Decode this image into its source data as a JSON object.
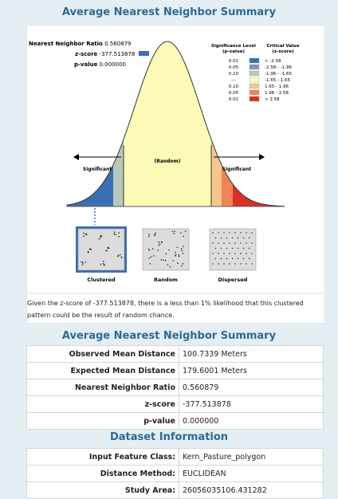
{
  "title_top": "Average Nearest Neighbor Summary",
  "graphic": {
    "nn_ratio_label": "Nearest Neighbor Ratio",
    "nn_ratio_value": "0.560879",
    "zscore_label": "z-score",
    "zscore_value": "-377.513878",
    "pvalue_label": "p-value",
    "pvalue_value": "0.000000",
    "legend_sig_header1": "Significance Level",
    "legend_sig_header2": "(p-value)",
    "legend_crit_header1": "Critical Value",
    "legend_crit_header2": "(z-score)",
    "legend_rows": [
      {
        "p": "0.01",
        "z": "< -2.58",
        "color": "#3a6fb4"
      },
      {
        "p": "0.05",
        "z": "-2.58 - -1.96",
        "color": "#7c99bd"
      },
      {
        "p": "0.10",
        "z": "-1.96 - -1.65",
        "color": "#b8c9bc"
      },
      {
        "p": "---",
        "z": "-1.65 - 1.65",
        "color": "#fbfbb7"
      },
      {
        "p": "0.10",
        "z": "1.65 - 1.96",
        "color": "#f7c68e"
      },
      {
        "p": "0.05",
        "z": "1.96 - 2.58",
        "color": "#ef8458"
      },
      {
        "p": "0.01",
        "z": "> 2.58",
        "color": "#d73026"
      }
    ],
    "random_label": "(Random)",
    "significant_left": "Significant",
    "significant_right": "Significant",
    "clustered_label": "Clustered",
    "random_pattern_label": "Random",
    "dispersed_label": "Dispersed",
    "note": "Given the z-score of -377.513878, there is a less than 1% likelihood that this clustered pattern could be the result of random chance."
  },
  "title_summary": "Average Nearest Neighbor Summary",
  "summary_rows": [
    {
      "key": "Observed Mean Distance",
      "value": "100.7339 Meters"
    },
    {
      "key": "Expected Mean Distance",
      "value": "179.6001 Meters"
    },
    {
      "key": "Nearest Neighbor Ratio",
      "value": "0.560879"
    },
    {
      "key": "z-score",
      "value": "-377.513878"
    },
    {
      "key": "p-value",
      "value": "0.000000"
    }
  ],
  "title_dataset": "Dataset Information",
  "dataset_rows": [
    {
      "key": "Input Feature Class:",
      "value": "Kern_Pasture_polygon"
    },
    {
      "key": "Distance Method:",
      "value": "EUCLIDEAN"
    },
    {
      "key": "Study Area:",
      "value": "26056035106.431282"
    }
  ]
}
